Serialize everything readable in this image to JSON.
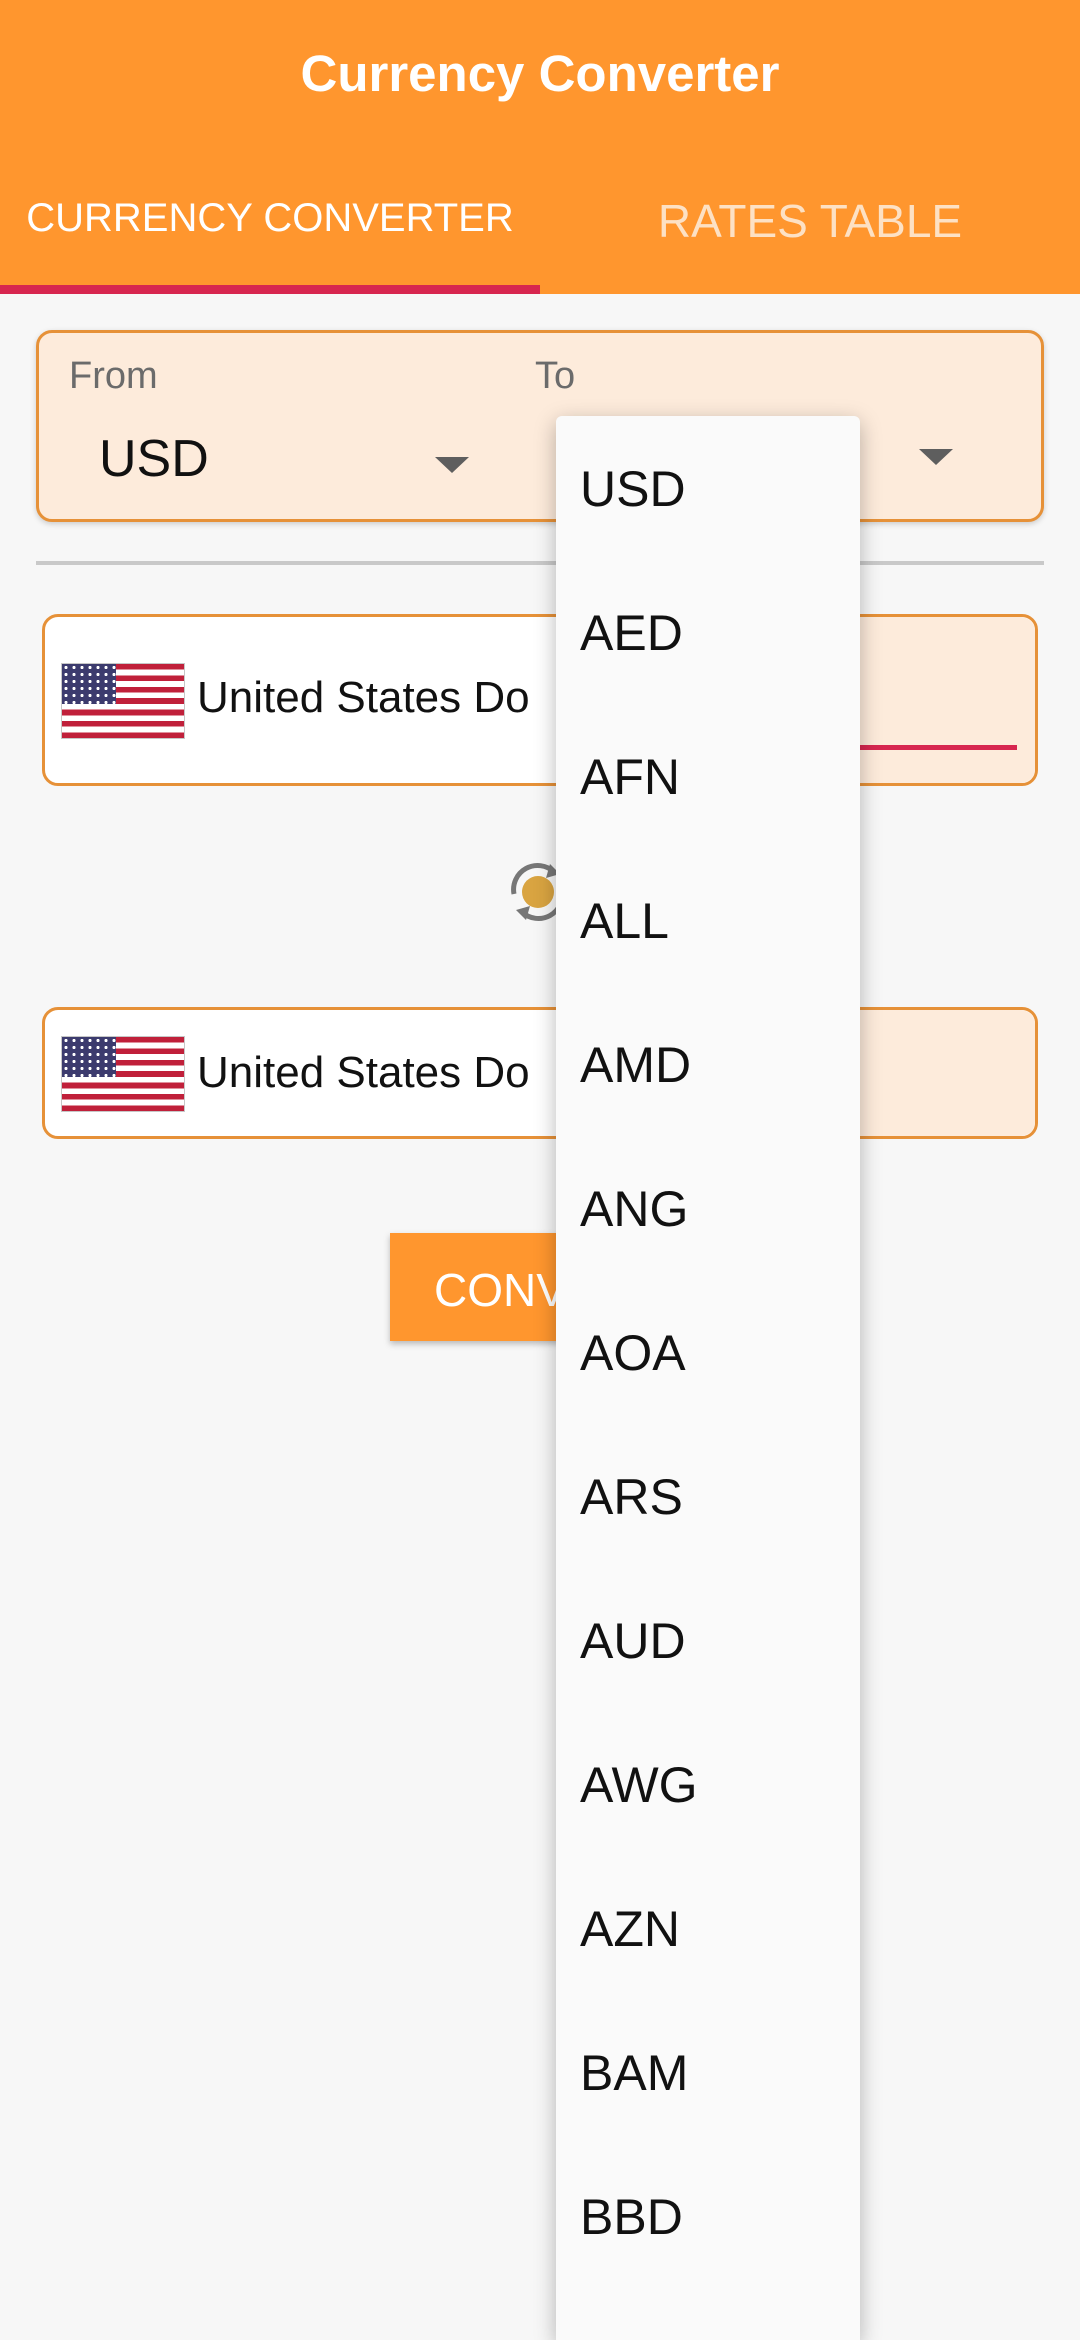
{
  "app": {
    "title": "Currency Converter"
  },
  "tabs": [
    {
      "label": "CURRENCY CONVERTER",
      "active": true
    },
    {
      "label": "RATES TABLE",
      "active": false
    }
  ],
  "selector": {
    "from_label": "From",
    "to_label": "To",
    "from_value": "USD"
  },
  "input_card": {
    "currency_name": "United States Do"
  },
  "output_card": {
    "currency_name": "United States Do"
  },
  "convert_button": {
    "label": "CONV"
  },
  "dropdown": {
    "options": [
      "USD",
      "AED",
      "AFN",
      "ALL",
      "AMD",
      "ANG",
      "AOA",
      "ARS",
      "AUD",
      "AWG",
      "AZN",
      "BAM",
      "BBD"
    ]
  },
  "colors": {
    "primary": "#ff962e",
    "accent": "#d7264f",
    "card_fill": "#fdebdb"
  },
  "icons": {
    "swap": "swap-icon",
    "caret": "chevron-down-icon",
    "flag": "us-flag-icon"
  }
}
